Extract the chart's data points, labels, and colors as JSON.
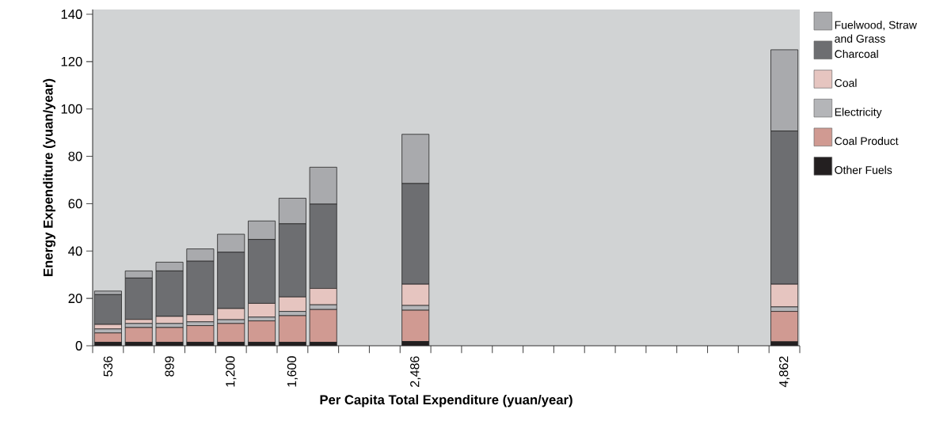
{
  "chart_data": {
    "type": "bar",
    "stacked": true,
    "legend": "right",
    "xlabel": "Per Capita Total Expenditure (yuan/year)",
    "ylabel": "Energy Expenditure (yuan/year)",
    "categories": [
      "536",
      null,
      "899",
      null,
      "1,200",
      null,
      "1,600",
      null,
      null,
      null,
      "2,486",
      null,
      null,
      null,
      null,
      null,
      null,
      null,
      null,
      null,
      null,
      null,
      "4,862"
    ],
    "ylim": [
      0,
      142
    ],
    "yticks": [
      0,
      20,
      40,
      60,
      80,
      100,
      120,
      140
    ],
    "series": [
      {
        "name": "Other Fuels",
        "color": "#231f20",
        "values": [
          1.5,
          1.5,
          1.5,
          1.5,
          1.5,
          1.5,
          1.5,
          1.5,
          null,
          null,
          1.8,
          null,
          null,
          null,
          null,
          null,
          null,
          null,
          null,
          null,
          null,
          null,
          1.7
        ]
      },
      {
        "name": "Coal Product",
        "color": "#d09a92",
        "values": [
          3.9,
          6.2,
          6.2,
          7.0,
          7.9,
          9.0,
          11.2,
          13.8,
          null,
          null,
          13.2,
          null,
          null,
          null,
          null,
          null,
          null,
          null,
          null,
          null,
          null,
          null,
          12.8
        ]
      },
      {
        "name": "Electricity",
        "color": "#b4b5b8",
        "values": [
          1.7,
          1.7,
          1.7,
          1.6,
          1.6,
          1.6,
          1.8,
          2.0,
          null,
          null,
          2.0,
          null,
          null,
          null,
          null,
          null,
          null,
          null,
          null,
          null,
          null,
          null,
          1.9
        ]
      },
      {
        "name": "Coal",
        "color": "#e6c5c0",
        "values": [
          1.9,
          1.7,
          3.0,
          3.0,
          4.7,
          5.8,
          6.1,
          6.9,
          null,
          null,
          9.0,
          null,
          null,
          null,
          null,
          null,
          null,
          null,
          null,
          null,
          null,
          null,
          9.6
        ]
      },
      {
        "name": "Charcoal",
        "color": "#6d6e71",
        "values": [
          12.6,
          17.5,
          19.2,
          22.6,
          23.8,
          27.0,
          30.9,
          35.6,
          null,
          null,
          42.5,
          null,
          null,
          null,
          null,
          null,
          null,
          null,
          null,
          null,
          null,
          null,
          64.7
        ]
      },
      {
        "name": "Fuelwood, Straw and Grass",
        "color": "#a9aaad",
        "values": [
          1.5,
          3.0,
          3.7,
          5.2,
          7.6,
          7.8,
          10.8,
          15.6,
          null,
          null,
          20.8,
          null,
          null,
          null,
          null,
          null,
          null,
          null,
          null,
          null,
          null,
          null,
          34.3
        ]
      }
    ]
  }
}
